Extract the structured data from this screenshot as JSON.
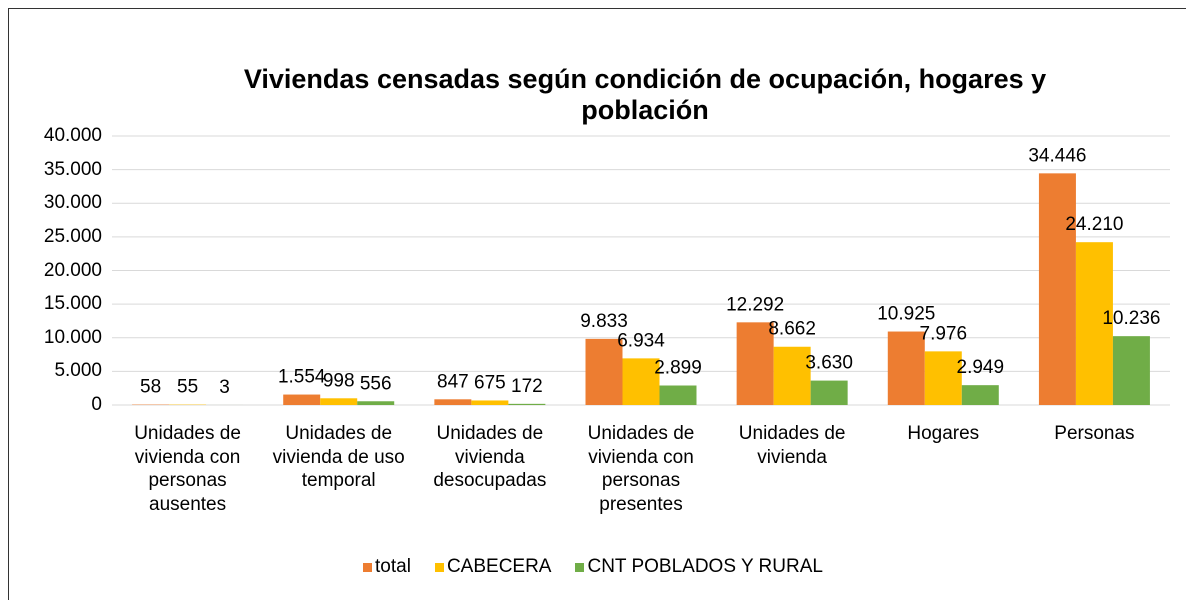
{
  "chart_data": {
    "type": "bar",
    "title": "Viviendas censadas según condición de ocupación, hogares y población",
    "categories": [
      "Unidades de vivienda con personas ausentes",
      "Unidades de vivienda de uso temporal",
      "Unidades de vivienda desocupadas",
      "Unidades de vivienda con personas presentes",
      "Unidades de vivienda",
      "Hogares",
      "Personas"
    ],
    "series": [
      {
        "name": "total",
        "color": "#ed7d31",
        "values": [
          58,
          1554,
          847,
          9833,
          12292,
          10925,
          34446
        ],
        "value_labels": [
          "58",
          "1.554",
          "847",
          "9.833",
          "12.292",
          "10.925",
          "34.446"
        ]
      },
      {
        "name": "CABECERA",
        "color": "#ffc000",
        "values": [
          55,
          998,
          675,
          6934,
          8662,
          7976,
          24210
        ],
        "value_labels": [
          "55",
          "998",
          "675",
          "6.934",
          "8.662",
          "7.976",
          "24.210"
        ]
      },
      {
        "name": "CNT POBLADOS Y RURAL",
        "color": "#70ad47",
        "values": [
          3,
          556,
          172,
          2899,
          3630,
          2949,
          10236
        ],
        "value_labels": [
          "3",
          "556",
          "172",
          "2.899",
          "3.630",
          "2.949",
          "10.236"
        ]
      }
    ],
    "ylim": [
      0,
      40000
    ],
    "yticks": [
      0,
      {
        "value": 5000,
        "label": "5.000"
      },
      {
        "value": 10000,
        "label": "10.000"
      },
      {
        "value": 15000,
        "label": "15.000"
      },
      {
        "value": 20000,
        "label": "20.000"
      },
      {
        "value": 25000,
        "label": "25.000"
      },
      {
        "value": 30000,
        "label": "30.000"
      },
      {
        "value": 35000,
        "label": "35.000"
      },
      {
        "value": 40000,
        "label": "40.000"
      }
    ],
    "grid": true,
    "legend": "bottom"
  }
}
